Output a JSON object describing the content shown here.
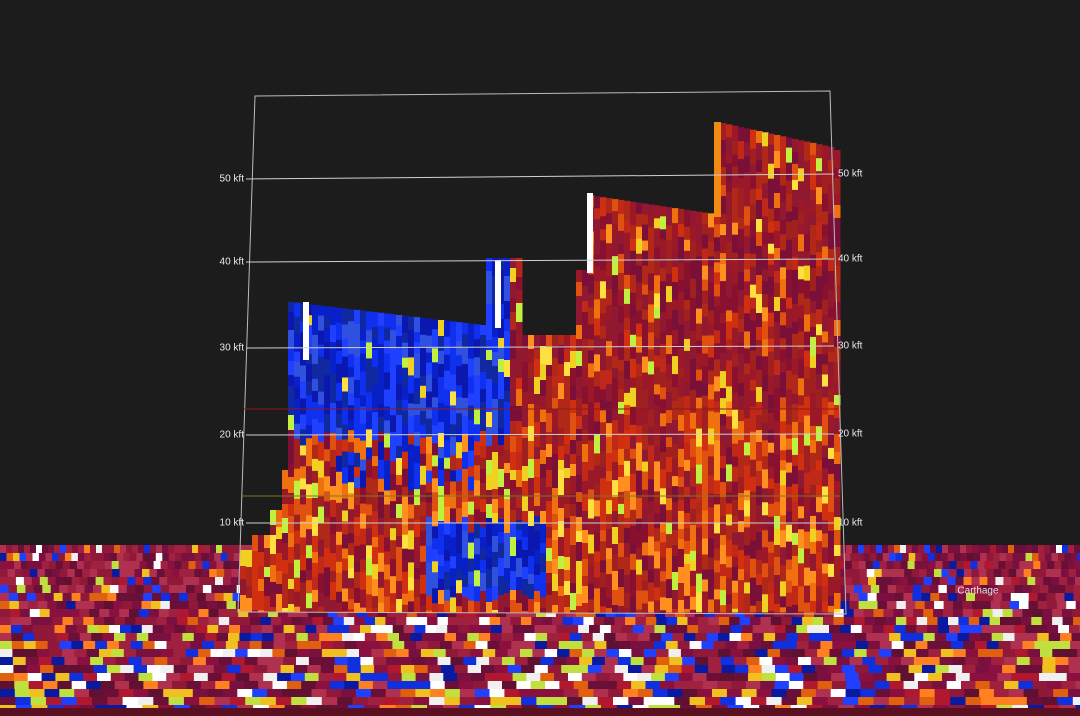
{
  "height_labels": [
    "50 kft",
    "40 kft",
    "30 kft",
    "20 kft",
    "10 kft"
  ],
  "place_label": "Carthage"
}
